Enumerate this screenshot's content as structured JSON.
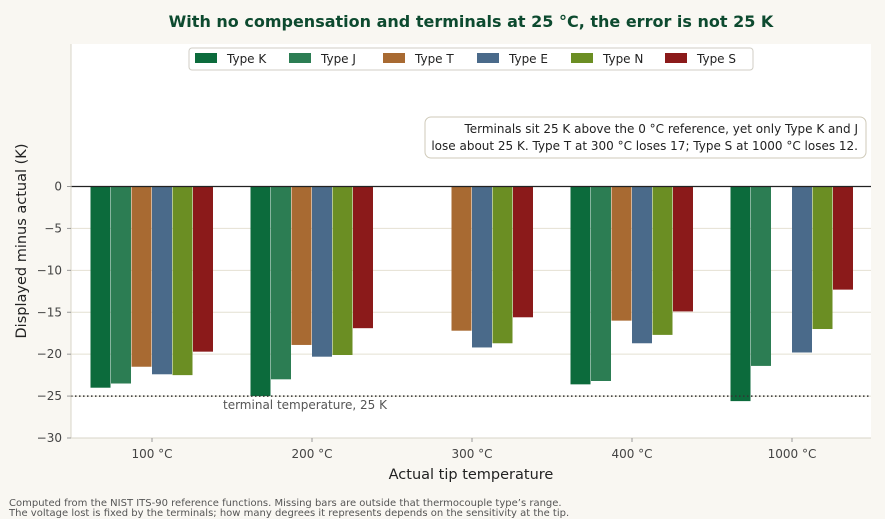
{
  "chart_data": {
    "type": "bar",
    "title": "With no compensation and terminals at 25 °C, the error is not 25 K",
    "xlabel": "Actual tip temperature",
    "ylabel": "Displayed minus actual (K)",
    "ylim": [
      -30,
      0
    ],
    "yticks": [
      0,
      -5,
      -10,
      -15,
      -20,
      -25,
      -30
    ],
    "grid": "horizontal",
    "legend_position": "top",
    "categories": [
      "100 °C",
      "200 °C",
      "300 °C",
      "400 °C",
      "1000 °C"
    ],
    "series": [
      {
        "name": "Type K",
        "color": "#0c6b3c",
        "values": [
          -24.0,
          -25.0,
          null,
          -23.6,
          -25.6
        ]
      },
      {
        "name": "Type J",
        "color": "#2c7d53",
        "values": [
          -23.5,
          -23.0,
          null,
          -23.2,
          -21.4
        ]
      },
      {
        "name": "Type T",
        "color": "#a86a32",
        "values": [
          -21.5,
          -18.9,
          -17.2,
          -16.0,
          null
        ]
      },
      {
        "name": "Type E",
        "color": "#4a6a8a",
        "values": [
          -22.4,
          -20.3,
          -19.2,
          -18.7,
          -19.8
        ]
      },
      {
        "name": "Type N",
        "color": "#6b8e23",
        "values": [
          -22.5,
          -20.1,
          -18.7,
          -17.7,
          -17.0
        ]
      },
      {
        "name": "Type S",
        "color": "#8b1a1a",
        "values": [
          -19.7,
          -16.9,
          -15.6,
          -14.9,
          -12.3
        ]
      }
    ],
    "reference_line": {
      "value": -25,
      "label": "terminal temperature, 25 K",
      "style": "dotted"
    },
    "annotation": [
      "Terminals sit 25 K above the 0 °C reference, yet only Type K and J",
      "lose about 25 K. Type T at 300 °C loses 17; Type S at 1000 °C loses 12."
    ],
    "footnotes": [
      "Computed from the NIST ITS-90 reference functions. Missing bars are outside that thermocouple type’s range.",
      "The voltage lost is fixed by the terminals; how many degrees it represents depends on the sensitivity at the tip."
    ]
  }
}
